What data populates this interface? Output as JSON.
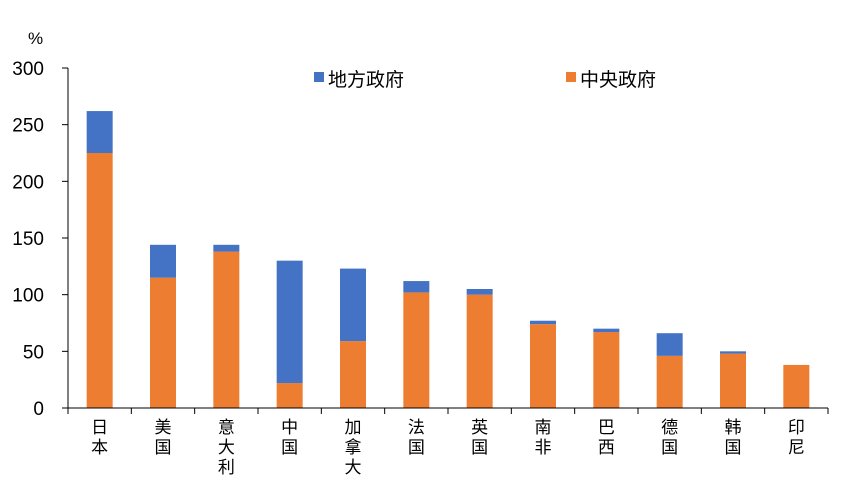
{
  "chart_data": {
    "type": "bar",
    "stacked": true,
    "title": "",
    "xlabel": "",
    "ylabel": "%",
    "ylim": [
      0,
      300
    ],
    "yticks": [
      0,
      50,
      100,
      150,
      200,
      250,
      300
    ],
    "grid": false,
    "legend_position": "top",
    "categories": [
      "日本",
      "美国",
      "意大利",
      "中国",
      "加拿大",
      "法国",
      "英国",
      "南非",
      "巴西",
      "德国",
      "韩国",
      "印尼"
    ],
    "series": [
      {
        "name": "中央政府",
        "color": "#ED7D31",
        "values": [
          225,
          115,
          138,
          22,
          59,
          102,
          100,
          74,
          67,
          46,
          48,
          38
        ]
      },
      {
        "name": "地方政府",
        "color": "#4472C4",
        "values": [
          37,
          29,
          6,
          108,
          64,
          10,
          5,
          3,
          3,
          20,
          2,
          0
        ]
      }
    ],
    "legend": [
      {
        "name": "地方政府",
        "color": "#4472C4"
      },
      {
        "name": "中央政府",
        "color": "#ED7D31"
      }
    ]
  }
}
